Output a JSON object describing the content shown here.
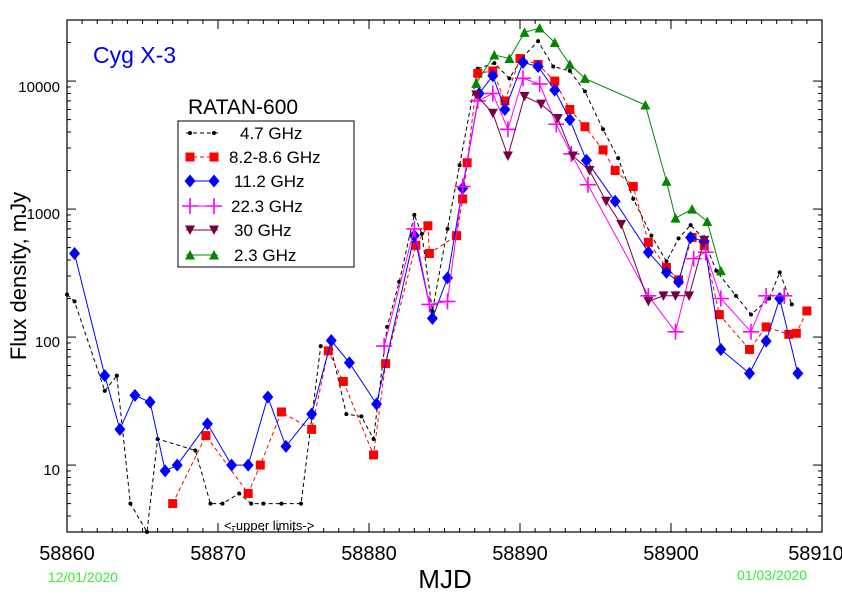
{
  "chart_data": {
    "type": "line",
    "title": "Cyg X-3",
    "title_color": "#0000ee",
    "legend_title": "RATAN-600",
    "xlabel": "MJD",
    "ylabel": "Flux density,  mJy",
    "xlim": [
      58860,
      58910
    ],
    "ylim": [
      3,
      30000
    ],
    "yscale": "log",
    "x_ticks": [
      "58860",
      "58870",
      "58880",
      "58890",
      "58900",
      "58910"
    ],
    "y_ticks": [
      "10",
      "100",
      "1000",
      "10000"
    ],
    "date_left": "12/01/2020",
    "date_right": "01/03/2020",
    "date_color": "#33ee33",
    "annotation": "<-upper limits->",
    "legend_position": "upper-left",
    "series": [
      {
        "name": "4.7 GHz",
        "color": "#000000",
        "marker": "dot",
        "dash": "dashed",
        "x": [
          58860,
          58860.5,
          58862.5,
          58863.3,
          58864.2,
          58865.3,
          58866,
          58868.5,
          58869.5,
          58870.3,
          58871.4,
          58872.2,
          58873,
          58874.2,
          58875.5,
          58876.8,
          58877.5,
          58878.5,
          58879.5,
          58880.3,
          58881.2,
          58882,
          58883,
          58883.5,
          58884.2,
          58885.2,
          58886,
          58887.2,
          58888.3,
          58889.3,
          58890.2,
          58891.2,
          58892.2,
          58893.3,
          58894.3,
          58895.5,
          58896.5,
          58897.5,
          58898.7,
          58899.7,
          58900.5,
          58901.3,
          58902.1,
          58903,
          58904.3,
          58905.3,
          58906.5,
          58907.2,
          58908
        ],
        "y": [
          215,
          190,
          38,
          50,
          5,
          3,
          16,
          13,
          5,
          5,
          6,
          5,
          5,
          5,
          5,
          85,
          80,
          25,
          24,
          16,
          120,
          270,
          900,
          640,
          160,
          700,
          2200,
          12500,
          13800,
          10500,
          15500,
          20500,
          13000,
          12000,
          8300,
          4200,
          2500,
          1200,
          620,
          390,
          590,
          750,
          600,
          330,
          210,
          150,
          200,
          320,
          180
        ]
      },
      {
        "name": "8.2-8.6 GHz",
        "color": "#ff0000",
        "marker": "square",
        "dash": "dashed",
        "x": [
          58867,
          58869.2,
          58872,
          58872.8,
          58874.2,
          58876.2,
          58877.3,
          58878.3,
          58880.3,
          58881.1,
          58883.1,
          58883.9,
          58884,
          58885.8,
          58886.2,
          58886.5,
          58887.2,
          58888.2,
          58889,
          58890,
          58891.2,
          58892.3,
          58893.3,
          58894.3,
          58895.5,
          58896.3,
          58897.5,
          58898.5,
          58899.7,
          58900.5,
          58901.4,
          58902.2,
          58903.2,
          58905.2,
          58906.3,
          58907.8,
          58908.3,
          58909
        ],
        "y": [
          5,
          17,
          6,
          10,
          26,
          19,
          78,
          45,
          12,
          62,
          520,
          740,
          450,
          620,
          1200,
          2300,
          11500,
          12000,
          7000,
          15000,
          13500,
          10000,
          6000,
          4400,
          2900,
          2000,
          1500,
          550,
          350,
          280,
          600,
          520,
          150,
          80,
          120,
          105,
          107,
          160
        ]
      },
      {
        "name": "11.2 GHz",
        "color": "#0000ff",
        "marker": "diamond",
        "dash": "solid",
        "x": [
          58860.5,
          58862.5,
          58863.5,
          58864.5,
          58865.5,
          58866.5,
          58867.3,
          58869.3,
          58870.9,
          58872,
          58873.3,
          58874.5,
          58876.2,
          58877.5,
          58878.7,
          58880.5,
          58883,
          58884.2,
          58885.2,
          58886.2,
          58887.3,
          58888.2,
          58889,
          58890.2,
          58891.2,
          58892.3,
          58893.3,
          58894.4,
          58896.3,
          58898.5,
          58899.7,
          58900.5,
          58901.3,
          58902.2,
          58903.3,
          58905.2,
          58906.3,
          58907.2,
          58908.4
        ],
        "y": [
          450,
          50,
          19,
          35,
          31,
          9,
          10,
          21,
          10,
          10,
          34,
          14,
          25,
          94,
          63,
          30,
          620,
          140,
          290,
          1450,
          8000,
          11000,
          6000,
          14000,
          13000,
          8500,
          5000,
          2400,
          1150,
          460,
          320,
          270,
          600,
          560,
          80,
          52,
          93,
          200,
          52
        ]
      },
      {
        "name": "22.3 GHz",
        "color": "#ff00ff",
        "marker": "plus",
        "dash": "solid",
        "x": [
          58881,
          58883,
          58884,
          58885.2,
          58886.2,
          58887.2,
          58888.2,
          58889.2,
          58890.2,
          58891.3,
          58892.4,
          58893.4,
          58894.5,
          58898.5,
          58900.3,
          58901.5,
          58902.3,
          58903.3,
          58905.3,
          58906.3,
          58907.5
        ],
        "y": [
          85,
          700,
          180,
          190,
          1500,
          7000,
          8000,
          4200,
          10500,
          9500,
          4600,
          2700,
          1550,
          210,
          110,
          410,
          460,
          200,
          110,
          210,
          210
        ]
      },
      {
        "name": "30 GHz",
        "color": "#770044",
        "marker": "triangle-down",
        "dash": "solid",
        "x": [
          58887.1,
          58888.2,
          58889.2,
          58890.3,
          58891.4,
          58892.5,
          58893.5,
          58894.6,
          58895.7,
          58896.7,
          58898.5,
          58899.5,
          58900.3,
          58901.2,
          58902.2
        ],
        "y": [
          7800,
          5600,
          2600,
          7600,
          6600,
          5100,
          2600,
          2000,
          1150,
          760,
          190,
          210,
          210,
          210,
          570
        ]
      },
      {
        "name": "2.3 GHz",
        "color": "#008800",
        "marker": "triangle-up",
        "dash": "solid",
        "x": [
          58887.1,
          58888.3,
          58889.3,
          58890.3,
          58891.3,
          58892.3,
          58893.3,
          58894.3,
          58898.3,
          58899.7,
          58900.3,
          58901.4,
          58902.4,
          58903.3
        ],
        "y": [
          9600,
          16000,
          15000,
          24000,
          26000,
          20000,
          13500,
          10500,
          6500,
          1650,
          850,
          1000,
          800,
          330
        ]
      }
    ]
  }
}
